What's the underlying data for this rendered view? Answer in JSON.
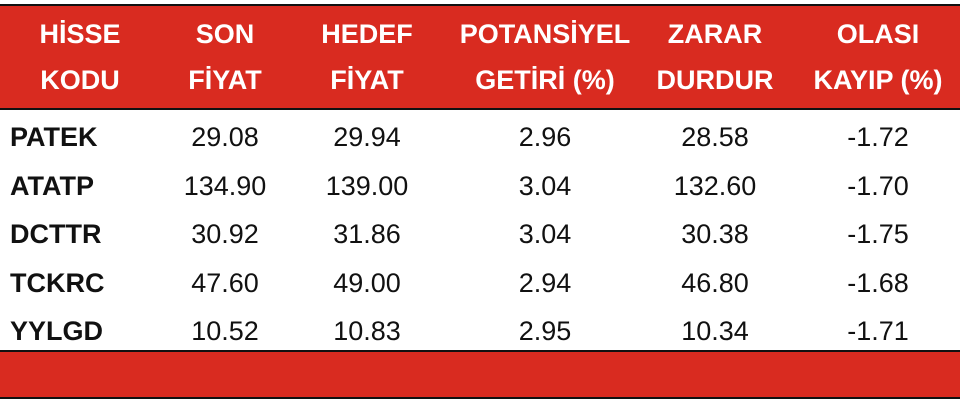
{
  "colors": {
    "header_bg": "#d92b20",
    "text": "#111111",
    "header_text": "#ffffff"
  },
  "columns": [
    {
      "line1": "HİSSE",
      "line2": "KODU"
    },
    {
      "line1": "SON",
      "line2": "FİYAT"
    },
    {
      "line1": "HEDEF",
      "line2": "FİYAT"
    },
    {
      "line1": "POTANSİYEL",
      "line2": "GETİRİ (%)"
    },
    {
      "line1": "ZARAR",
      "line2": "DURDUR"
    },
    {
      "line1": "OLASI",
      "line2": "KAYIP (%)"
    }
  ],
  "rows": [
    [
      "PATEK",
      "29.08",
      "29.94",
      "2.96",
      "28.58",
      "-1.72"
    ],
    [
      "ATATP",
      "134.90",
      "139.00",
      "3.04",
      "132.60",
      "-1.70"
    ],
    [
      "DCTTR",
      "30.92",
      "31.86",
      "3.04",
      "30.38",
      "-1.75"
    ],
    [
      "TCKRC",
      "47.60",
      "49.00",
      "2.94",
      "46.80",
      "-1.68"
    ],
    [
      "YYLGD",
      "10.52",
      "10.83",
      "2.95",
      "10.34",
      "-1.71"
    ]
  ]
}
